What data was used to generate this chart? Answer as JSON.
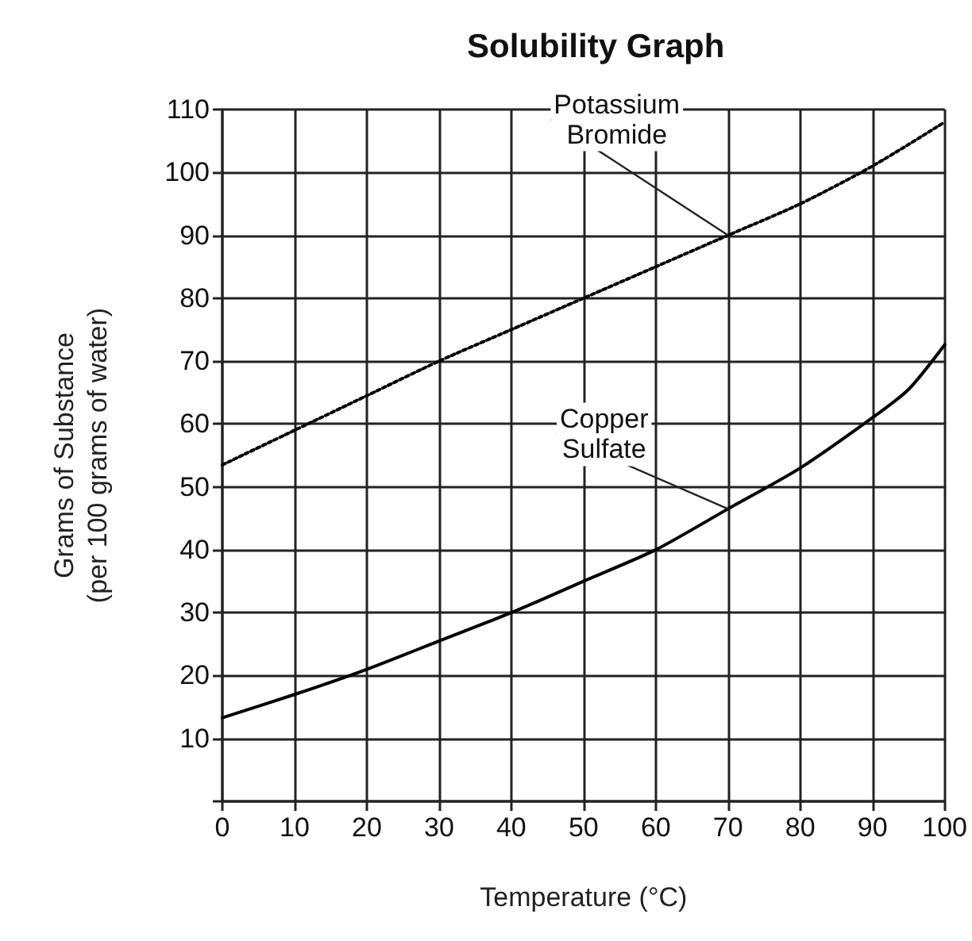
{
  "chart_data": {
    "type": "line",
    "title": "Solubility Graph",
    "xlabel": "Temperature (°C)",
    "ylabel": "Grams of Substance\n(per 100 grams of water)",
    "series": [
      {
        "name": "Potassium\nBromide",
        "color": "#000000",
        "line_style": "dotted",
        "x": [
          0,
          10,
          20,
          30,
          40,
          50,
          60,
          70,
          80,
          90,
          100
        ],
        "values": [
          53.5,
          59,
          64.5,
          70,
          75,
          80,
          85,
          90,
          95,
          101,
          108
        ]
      },
      {
        "name": "Copper\nSulfate",
        "color": "#000000",
        "line_style": "solid",
        "x": [
          0,
          10,
          20,
          30,
          40,
          50,
          60,
          70,
          80,
          90,
          95,
          100
        ],
        "values": [
          13.3,
          17,
          21,
          25.5,
          30,
          35,
          40,
          46.5,
          53,
          61,
          65.5,
          72.6
        ]
      }
    ],
    "xlim": [
      0,
      100
    ],
    "xticks": [
      0,
      10,
      20,
      30,
      40,
      50,
      60,
      70,
      80,
      90,
      100
    ],
    "ylim": [
      0,
      110
    ],
    "yticks": [
      {
        "value": 0,
        "label": null
      },
      10,
      20,
      30,
      40,
      50,
      60,
      70,
      80,
      90,
      100,
      110
    ],
    "grid": true,
    "legend": false
  }
}
